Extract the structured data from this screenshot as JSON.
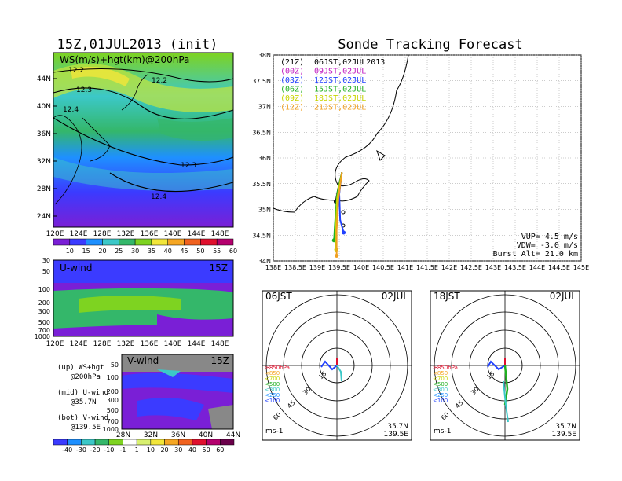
{
  "titles": {
    "left_title": "15Z,01JUL2013 (init)",
    "right_title": "Sonde Tracking Forecast"
  },
  "colors": {
    "wind_scale": [
      "#7a1fd6",
      "#3b3bff",
      "#1e90ff",
      "#3cc8c8",
      "#34b76a",
      "#7ed321",
      "#f2e63a",
      "#f5a623",
      "#f0621f",
      "#e0102e",
      "#b4006e"
    ],
    "launch_00Z": "#000000",
    "launch_03Z": "#c018c0",
    "launch_06Z": "#2040ff",
    "launch_09Z": "#20b020",
    "launch_12Z": "#c8d400",
    "launch_15Z": "#f0a020"
  },
  "panel_main": {
    "label": "WS(m/s)+hgt(km)@200hPa",
    "x_ticks": [
      "120E",
      "124E",
      "128E",
      "132E",
      "136E",
      "140E",
      "144E",
      "148E"
    ],
    "y_ticks": [
      "44N",
      "40N",
      "36N",
      "32N",
      "28N",
      "24N"
    ],
    "contours": [
      "12.2",
      "12.2",
      "12.3",
      "12.4",
      "12.3",
      "12.4"
    ],
    "colorbar_ticks": [
      "10",
      "15",
      "20",
      "25",
      "30",
      "35",
      "40",
      "45",
      "50",
      "55",
      "60"
    ]
  },
  "panel_u": {
    "label": "U-wind",
    "time": "15Z",
    "y_ticks": [
      "30",
      "50",
      "100",
      "200",
      "300",
      "500",
      "700",
      "1000"
    ],
    "x_ticks": [
      "120E",
      "124E",
      "128E",
      "132E",
      "136E",
      "140E",
      "144E",
      "148E"
    ]
  },
  "panel_v": {
    "label": "V-wind",
    "time": "15Z",
    "y_ticks": [
      "50",
      "100",
      "200",
      "300",
      "500",
      "700",
      "1000"
    ],
    "x_ticks": [
      "28N",
      "32N",
      "36N",
      "40N",
      "44N"
    ],
    "colorbar_ticks": [
      "-40",
      "-30",
      "-20",
      "-10",
      "-1",
      "1",
      "10",
      "20",
      "30",
      "40",
      "50",
      "60"
    ]
  },
  "legend_notes": [
    {
      "line1": "(up) WS+hgt",
      "line2": "@200hPa"
    },
    {
      "line1": "(mid) U-wind",
      "line2": "@35.7N"
    },
    {
      "line1": "(bot) V-wind",
      "line2": "@139.5E"
    }
  ],
  "track_panel": {
    "legend": [
      {
        "code": "(21Z)",
        "label": "06JST,02JUL2013"
      },
      {
        "code": "(00Z)",
        "label": "09JST,02JUL"
      },
      {
        "code": "(03Z)",
        "label": "12JST,02JUL"
      },
      {
        "code": "(06Z)",
        "label": "15JST,02JUL"
      },
      {
        "code": "(09Z)",
        "label": "18JST,02JUL"
      },
      {
        "code": "(12Z)",
        "label": "21JST,02JUL"
      }
    ],
    "params": [
      "VUP= 4.5 m/s",
      "VDW= -3.0 m/s",
      "Burst Alt= 21.0 km"
    ],
    "x_ticks": [
      "138E",
      "138.5E",
      "139E",
      "139.5E",
      "140E",
      "140.5E",
      "141E",
      "141.5E",
      "142E",
      "142.5E",
      "143E",
      "143.5E",
      "144E",
      "144.5E",
      "145E"
    ],
    "y_ticks": [
      "38N",
      "37.5N",
      "37N",
      "36.5N",
      "36N",
      "35.5N",
      "35N",
      "34.5N",
      "34N"
    ]
  },
  "hodographs": [
    {
      "time": "06JST",
      "date": "02JUL",
      "lat": "35.7N",
      "lon": "139.5E",
      "unit": "ms-1",
      "rings": [
        "15",
        "30",
        "45",
        "60"
      ],
      "levels": [
        "≥850hPa",
        "<850",
        "<700",
        "<500",
        "<300",
        "<250",
        "<100"
      ]
    },
    {
      "time": "18JST",
      "date": "02JUL",
      "lat": "35.7N",
      "lon": "139.5E",
      "unit": "ms-1",
      "rings": [
        "15",
        "30",
        "45",
        "60"
      ],
      "levels": [
        "≥850hPa",
        "<850",
        "<700",
        "<500",
        "<300",
        "<250",
        "<100"
      ]
    }
  ],
  "chart_data": [
    {
      "type": "heatmap",
      "title": "15Z,01JUL2013 (init)",
      "subtitle": "WS(m/s)+hgt(km)@200hPa",
      "xlim": [
        120,
        150
      ],
      "ylim": [
        22,
        47
      ],
      "contour_labels": [
        12.2,
        12.2,
        12.3,
        12.4,
        12.3,
        12.4
      ]
    },
    {
      "type": "heatmap",
      "title": "U-wind 15Z",
      "ylabel": "",
      "xlim": [
        120,
        150
      ],
      "ylim": [
        1000,
        30
      ]
    },
    {
      "type": "heatmap",
      "title": "V-wind 15Z",
      "xlim": [
        28,
        44
      ],
      "ylim": [
        1000,
        50
      ]
    },
    {
      "type": "line",
      "title": "Sonde Tracking Forecast",
      "xlim": [
        138,
        145
      ],
      "ylim": [
        34,
        38
      ],
      "series": [
        {
          "name": "06JST,02JULY2013",
          "x": [
            139.56,
            139.5,
            139.45,
            139.42
          ],
          "y": [
            35.72,
            35.5,
            35.3,
            35.15
          ]
        },
        {
          "name": "09JST,02JUL",
          "x": [
            139.56,
            139.52,
            139.48,
            139.47
          ],
          "y": [
            35.72,
            35.55,
            35.38,
            35.3
          ]
        },
        {
          "name": "12JST,02JUL",
          "x": [
            139.56,
            139.5,
            139.52,
            139.6
          ],
          "y": [
            35.72,
            35.3,
            34.8,
            34.55
          ]
        },
        {
          "name": "15JST,02JUL",
          "x": [
            139.56,
            139.45,
            139.4,
            139.38
          ],
          "y": [
            35.72,
            35.3,
            34.7,
            34.4
          ]
        },
        {
          "name": "18JST,02JUL",
          "x": [
            139.56,
            139.45,
            139.42,
            139.43
          ],
          "y": [
            35.72,
            35.2,
            34.5,
            34.22
          ]
        },
        {
          "name": "21JST,02JUL",
          "x": [
            139.56,
            139.48,
            139.44,
            139.44
          ],
          "y": [
            35.72,
            35.2,
            34.6,
            34.1
          ]
        }
      ]
    }
  ]
}
